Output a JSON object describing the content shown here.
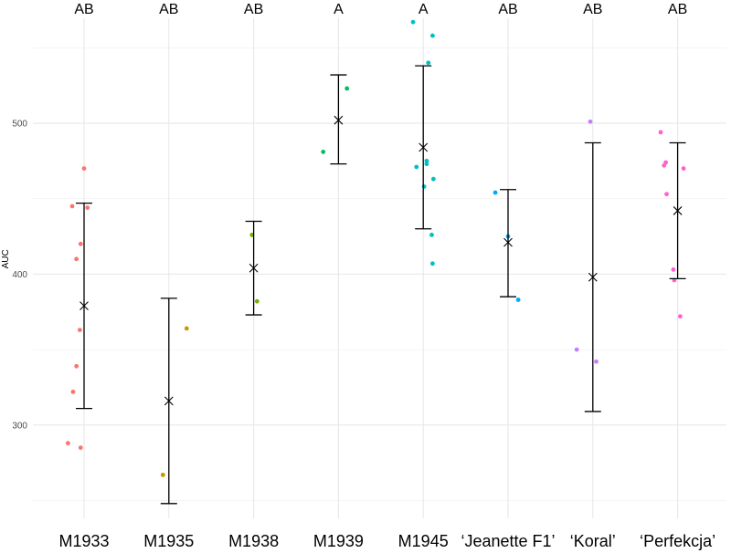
{
  "chart_data": {
    "type": "scatter",
    "title": "",
    "xlabel": "",
    "ylabel": "AUC",
    "ylim": [
      245,
      575
    ],
    "yticks": [
      300,
      400,
      500
    ],
    "grid": true,
    "legend": "none",
    "categories": [
      "M1933",
      "M1935",
      "M1938",
      "M1939",
      "M1945",
      "‘Jeanette F1’",
      "‘Koral’",
      "‘Perfekcja’"
    ],
    "groups": [
      {
        "name": "M1933",
        "color": "#F8766D",
        "letter": "AB",
        "mean": 379,
        "lower": 311,
        "upper": 447,
        "points": [
          {
            "x": -0.19,
            "y": 288
          },
          {
            "x": -0.04,
            "y": 285
          },
          {
            "x": -0.13,
            "y": 322
          },
          {
            "x": -0.09,
            "y": 339
          },
          {
            "x": -0.05,
            "y": 363
          },
          {
            "x": -0.09,
            "y": 410
          },
          {
            "x": -0.04,
            "y": 420
          },
          {
            "x": -0.14,
            "y": 445
          },
          {
            "x": 0.04,
            "y": 444
          },
          {
            "x": 0.0,
            "y": 470
          }
        ]
      },
      {
        "name": "M1935",
        "color": "#C49A00",
        "letter": "AB",
        "mean": 316,
        "lower": 248,
        "upper": 384,
        "points": [
          {
            "x": -0.07,
            "y": 267
          },
          {
            "x": 0.21,
            "y": 364
          }
        ]
      },
      {
        "name": "M1938",
        "color": "#7CAE00",
        "letter": "AB",
        "mean": 404,
        "lower": 373,
        "upper": 435,
        "points": [
          {
            "x": -0.02,
            "y": 426
          },
          {
            "x": 0.04,
            "y": 382
          }
        ]
      },
      {
        "name": "M1939",
        "color": "#00BE67",
        "letter": "A",
        "mean": 502,
        "lower": 473,
        "upper": 532,
        "points": [
          {
            "x": -0.18,
            "y": 481
          },
          {
            "x": 0.1,
            "y": 523
          }
        ]
      },
      {
        "name": "M1945",
        "color": "#00BFC4",
        "letter": "A",
        "mean": 484,
        "lower": 430,
        "upper": 538,
        "points": [
          {
            "x": -0.12,
            "y": 567
          },
          {
            "x": 0.11,
            "y": 558
          },
          {
            "x": 0.06,
            "y": 540
          },
          {
            "x": 0.04,
            "y": 475
          },
          {
            "x": 0.04,
            "y": 473
          },
          {
            "x": -0.08,
            "y": 471
          },
          {
            "x": 0.12,
            "y": 463
          },
          {
            "x": 0.01,
            "y": 458
          },
          {
            "x": 0.1,
            "y": 426
          },
          {
            "x": 0.11,
            "y": 407
          }
        ]
      },
      {
        "name": "‘Jeanette F1’",
        "color": "#00A9FF",
        "letter": "AB",
        "mean": 421,
        "lower": 385,
        "upper": 456,
        "points": [
          {
            "x": -0.15,
            "y": 454
          },
          {
            "x": 0.0,
            "y": 425
          },
          {
            "x": 0.12,
            "y": 383
          }
        ]
      },
      {
        "name": "‘Koral’",
        "color": "#C77CFF",
        "letter": "AB",
        "mean": 398,
        "lower": 309,
        "upper": 487,
        "points": [
          {
            "x": -0.03,
            "y": 501
          },
          {
            "x": -0.19,
            "y": 350
          },
          {
            "x": 0.04,
            "y": 342
          }
        ]
      },
      {
        "name": "‘Perfekcja’",
        "color": "#FF61CC",
        "letter": "AB",
        "mean": 442,
        "lower": 397,
        "upper": 487,
        "points": [
          {
            "x": -0.2,
            "y": 494
          },
          {
            "x": -0.14,
            "y": 474
          },
          {
            "x": -0.16,
            "y": 472
          },
          {
            "x": 0.07,
            "y": 470
          },
          {
            "x": -0.13,
            "y": 453
          },
          {
            "x": -0.05,
            "y": 403
          },
          {
            "x": -0.04,
            "y": 396
          },
          {
            "x": 0.03,
            "y": 372
          }
        ]
      }
    ]
  }
}
